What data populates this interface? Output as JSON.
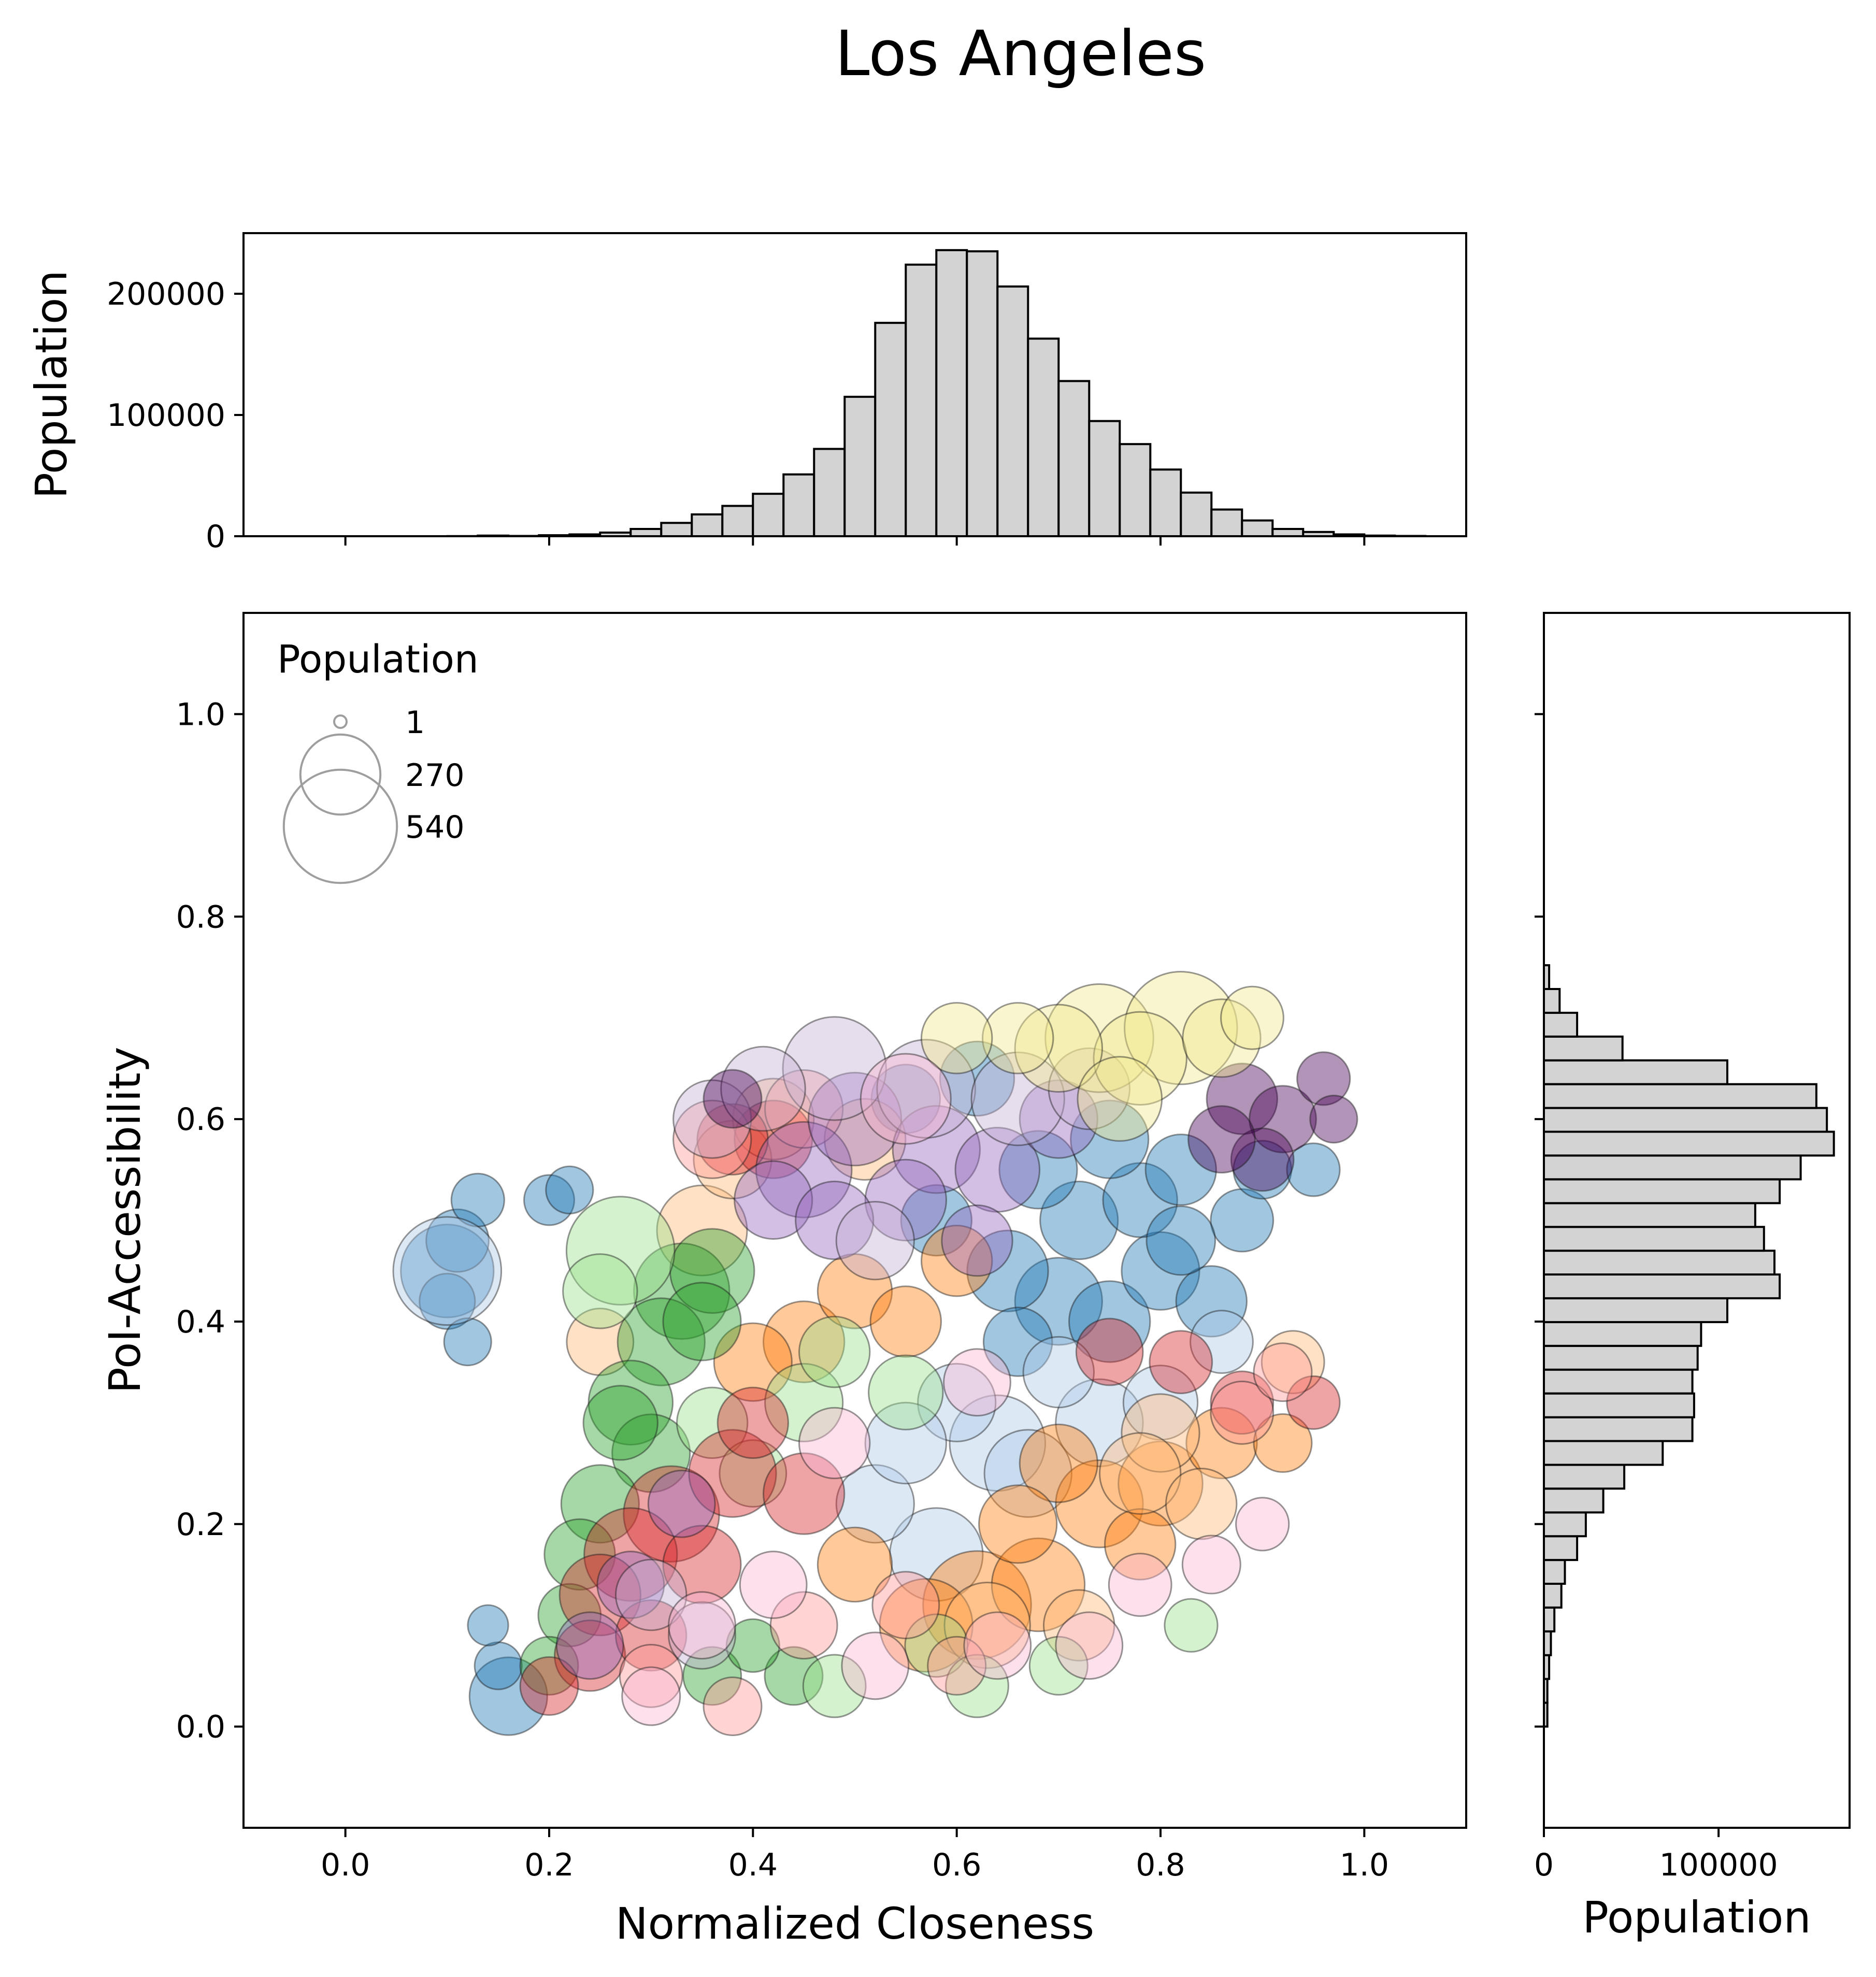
{
  "chart_data": {
    "title": "Los Angeles",
    "colors": {
      "hist_fill": "#d3d3d3",
      "hist_edge": "#000000",
      "legend_marker": "#9e9e9e",
      "clusters": [
        "#1f77b4",
        "#aec7e8",
        "#ff7f0e",
        "#ffbb78",
        "#2ca02c",
        "#98df8a",
        "#d62728",
        "#ff9896",
        "#9467bd",
        "#c5b0d5",
        "#440154",
        "#f0e68c",
        "#f7b6d2"
      ]
    },
    "scatter": {
      "type": "scatter",
      "xlabel": "Normalized Closeness",
      "ylabel": "PoI-Accessibility",
      "xlim": [
        -0.1,
        1.1
      ],
      "ylim": [
        -0.1,
        1.1
      ],
      "xticks": [
        "0.0",
        "0.2",
        "0.4",
        "0.6",
        "0.8",
        "1.0"
      ],
      "yticks": [
        "0.0",
        "0.2",
        "0.4",
        "0.6",
        "0.8",
        "1.0"
      ],
      "legend": {
        "title": "Population",
        "placement": "upper-left",
        "entries": [
          {
            "label": "1",
            "size": 1
          },
          {
            "label": "270",
            "size": 270
          },
          {
            "label": "540",
            "size": 540
          }
        ]
      },
      "series": [
        {
          "color": "#1f77b4",
          "points": [
            [
              0.1,
              0.45,
              300
            ],
            [
              0.11,
              0.48,
              120
            ],
            [
              0.1,
              0.42,
              90
            ],
            [
              0.13,
              0.52,
              80
            ],
            [
              0.12,
              0.38,
              60
            ],
            [
              0.2,
              0.52,
              70
            ],
            [
              0.22,
              0.53,
              60
            ],
            [
              0.16,
              0.03,
              200
            ],
            [
              0.15,
              0.06,
              60
            ],
            [
              0.14,
              0.1,
              40
            ],
            [
              0.7,
              0.42,
              260
            ],
            [
              0.75,
              0.4,
              220
            ],
            [
              0.8,
              0.45,
              200
            ],
            [
              0.85,
              0.42,
              160
            ],
            [
              0.65,
              0.45,
              220
            ],
            [
              0.72,
              0.5,
              200
            ],
            [
              0.78,
              0.52,
              180
            ],
            [
              0.82,
              0.55,
              160
            ],
            [
              0.88,
              0.5,
              120
            ],
            [
              0.68,
              0.55,
              200
            ],
            [
              0.62,
              0.64,
              180
            ],
            [
              0.75,
              0.58,
              200
            ],
            [
              0.9,
              0.55,
              100
            ],
            [
              0.66,
              0.38,
              150
            ],
            [
              0.58,
              0.5,
              160
            ],
            [
              0.82,
              0.48,
              150
            ],
            [
              0.95,
              0.55,
              80
            ],
            [
              0.55,
              0.62,
              150
            ]
          ]
        },
        {
          "color": "#aec7e8",
          "points": [
            [
              0.1,
              0.45,
              420
            ],
            [
              0.64,
              0.28,
              320
            ],
            [
              0.58,
              0.17,
              300
            ],
            [
              0.67,
              0.25,
              260
            ],
            [
              0.74,
              0.3,
              260
            ],
            [
              0.52,
              0.22,
              200
            ],
            [
              0.6,
              0.32,
              200
            ],
            [
              0.8,
              0.32,
              180
            ],
            [
              0.55,
              0.28,
              220
            ],
            [
              0.7,
              0.35,
              160
            ],
            [
              0.86,
              0.38,
              120
            ]
          ]
        },
        {
          "color": "#ff7f0e",
          "points": [
            [
              0.62,
              0.12,
              420
            ],
            [
              0.57,
              0.1,
              300
            ],
            [
              0.68,
              0.14,
              300
            ],
            [
              0.74,
              0.22,
              260
            ],
            [
              0.8,
              0.24,
              240
            ],
            [
              0.86,
              0.28,
              160
            ],
            [
              0.7,
              0.26,
              200
            ],
            [
              0.45,
              0.38,
              220
            ],
            [
              0.4,
              0.36,
              200
            ],
            [
              0.5,
              0.43,
              180
            ],
            [
              0.6,
              0.46,
              160
            ],
            [
              0.66,
              0.2,
              200
            ],
            [
              0.92,
              0.28,
              100
            ],
            [
              0.5,
              0.16,
              180
            ],
            [
              0.55,
              0.4,
              160
            ],
            [
              0.78,
              0.18,
              160
            ]
          ]
        },
        {
          "color": "#ffbb78",
          "points": [
            [
              0.35,
              0.49,
              280
            ],
            [
              0.38,
              0.56,
              200
            ],
            [
              0.42,
              0.6,
              220
            ],
            [
              0.51,
              0.58,
              220
            ],
            [
              0.63,
              0.1,
              250
            ],
            [
              0.8,
              0.29,
              200
            ],
            [
              0.78,
              0.25,
              220
            ],
            [
              0.84,
              0.22,
              160
            ],
            [
              0.25,
              0.38,
              140
            ],
            [
              0.93,
              0.36,
              120
            ],
            [
              0.72,
              0.1,
              160
            ]
          ]
        },
        {
          "color": "#2ca02c",
          "points": [
            [
              0.33,
              0.43,
              320
            ],
            [
              0.31,
              0.38,
              260
            ],
            [
              0.28,
              0.32,
              240
            ],
            [
              0.36,
              0.45,
              240
            ],
            [
              0.3,
              0.27,
              200
            ],
            [
              0.25,
              0.22,
              200
            ],
            [
              0.23,
              0.17,
              160
            ],
            [
              0.27,
              0.3,
              180
            ],
            [
              0.35,
              0.4,
              200
            ],
            [
              0.22,
              0.11,
              120
            ],
            [
              0.2,
              0.06,
              100
            ],
            [
              0.36,
              0.05,
              100
            ],
            [
              0.44,
              0.05,
              100
            ],
            [
              0.4,
              0.08,
              80
            ]
          ]
        },
        {
          "color": "#98df8a",
          "points": [
            [
              0.27,
              0.47,
              420
            ],
            [
              0.25,
              0.43,
              180
            ],
            [
              0.36,
              0.3,
              160
            ],
            [
              0.45,
              0.32,
              200
            ],
            [
              0.55,
              0.33,
              180
            ],
            [
              0.48,
              0.37,
              160
            ],
            [
              0.4,
              0.25,
              140
            ],
            [
              0.58,
              0.08,
              120
            ],
            [
              0.62,
              0.04,
              120
            ],
            [
              0.7,
              0.06,
              100
            ],
            [
              0.83,
              0.1,
              80
            ],
            [
              0.48,
              0.04,
              120
            ]
          ]
        },
        {
          "color": "#d62728",
          "points": [
            [
              0.32,
              0.21,
              320
            ],
            [
              0.28,
              0.17,
              300
            ],
            [
              0.25,
              0.13,
              220
            ],
            [
              0.38,
              0.25,
              260
            ],
            [
              0.45,
              0.23,
              220
            ],
            [
              0.35,
              0.16,
              200
            ],
            [
              0.4,
              0.3,
              160
            ],
            [
              0.24,
              0.07,
              160
            ],
            [
              0.3,
              0.09,
              160
            ],
            [
              0.42,
              0.58,
              200
            ],
            [
              0.38,
              0.58,
              160
            ],
            [
              0.88,
              0.32,
              120
            ],
            [
              0.95,
              0.32,
              80
            ],
            [
              0.75,
              0.37,
              140
            ],
            [
              0.82,
              0.36,
              120
            ],
            [
              0.2,
              0.04,
              100
            ]
          ]
        },
        {
          "color": "#ff9896",
          "points": [
            [
              0.36,
              0.58,
              200
            ],
            [
              0.45,
              0.61,
              200
            ],
            [
              0.3,
              0.05,
              120
            ],
            [
              0.45,
              0.1,
              140
            ],
            [
              0.55,
              0.12,
              140
            ],
            [
              0.88,
              0.31,
              120
            ],
            [
              0.92,
              0.35,
              100
            ],
            [
              0.38,
              0.02,
              100
            ],
            [
              0.6,
              0.06,
              100
            ]
          ]
        },
        {
          "color": "#9467bd",
          "points": [
            [
              0.45,
              0.55,
              320
            ],
            [
              0.5,
              0.6,
              300
            ],
            [
              0.58,
              0.57,
              260
            ],
            [
              0.64,
              0.55,
              240
            ],
            [
              0.55,
              0.52,
              220
            ],
            [
              0.42,
              0.52,
              200
            ],
            [
              0.7,
              0.6,
              200
            ],
            [
              0.48,
              0.5,
              200
            ],
            [
              0.24,
              0.08,
              140
            ],
            [
              0.28,
              0.14,
              140
            ],
            [
              0.62,
              0.48,
              160
            ],
            [
              0.33,
              0.22,
              140
            ]
          ]
        },
        {
          "color": "#c5b0d5",
          "points": [
            [
              0.48,
              0.65,
              380
            ],
            [
              0.57,
              0.63,
              340
            ],
            [
              0.66,
              0.62,
              300
            ],
            [
              0.36,
              0.6,
              200
            ],
            [
              0.41,
              0.63,
              240
            ],
            [
              0.73,
              0.63,
              220
            ],
            [
              0.52,
              0.48,
              200
            ],
            [
              0.3,
              0.13,
              160
            ],
            [
              0.35,
              0.09,
              140
            ]
          ]
        },
        {
          "color": "#440154",
          "points": [
            [
              0.88,
              0.62,
              160
            ],
            [
              0.92,
              0.6,
              140
            ],
            [
              0.96,
              0.64,
              80
            ],
            [
              0.9,
              0.56,
              120
            ],
            [
              0.86,
              0.58,
              140
            ],
            [
              0.97,
              0.6,
              60
            ],
            [
              0.38,
              0.62,
              100
            ]
          ]
        },
        {
          "color": "#f0e68c",
          "points": [
            [
              0.74,
              0.68,
              420
            ],
            [
              0.82,
              0.69,
              460
            ],
            [
              0.78,
              0.66,
              300
            ],
            [
              0.86,
              0.68,
              200
            ],
            [
              0.7,
              0.67,
              260
            ],
            [
              0.66,
              0.68,
              160
            ],
            [
              0.76,
              0.62,
              240
            ],
            [
              0.89,
              0.7,
              120
            ],
            [
              0.6,
              0.68,
              160
            ]
          ]
        },
        {
          "color": "#f7b6d2",
          "points": [
            [
              0.55,
              0.62,
              280
            ],
            [
              0.35,
              0.1,
              140
            ],
            [
              0.42,
              0.14,
              140
            ],
            [
              0.52,
              0.06,
              140
            ],
            [
              0.64,
              0.08,
              140
            ],
            [
              0.73,
              0.08,
              140
            ],
            [
              0.48,
              0.28,
              160
            ],
            [
              0.62,
              0.34,
              140
            ],
            [
              0.78,
              0.14,
              120
            ],
            [
              0.85,
              0.16,
              100
            ],
            [
              0.3,
              0.03,
              100
            ],
            [
              0.9,
              0.2,
              80
            ]
          ]
        }
      ]
    },
    "hist_top": {
      "type": "bar",
      "ylabel": "Population",
      "ylim": [
        0,
        250000
      ],
      "yticks": [
        "0",
        "100000",
        "200000"
      ],
      "bin_start": 0.1,
      "bin_width": 0.03,
      "values": [
        100,
        500,
        200,
        800,
        1500,
        3000,
        6000,
        11000,
        18000,
        25000,
        35000,
        51000,
        72000,
        115000,
        176000,
        224000,
        236000,
        235000,
        206000,
        163000,
        128000,
        95000,
        76000,
        55000,
        36000,
        22000,
        13000,
        6000,
        3500,
        1500,
        500,
        200
      ]
    },
    "hist_right": {
      "type": "bar",
      "xlabel": "Population",
      "xlim": [
        0,
        175000
      ],
      "xticks": [
        "0",
        "100000"
      ],
      "bin_start": 0.0,
      "bin_width": 0.0235,
      "values": [
        2000,
        2000,
        3000,
        4000,
        6000,
        10000,
        12000,
        19000,
        24000,
        34000,
        46000,
        68000,
        85000,
        86000,
        85000,
        88000,
        90000,
        105000,
        135000,
        132000,
        126000,
        121000,
        135000,
        147000,
        166000,
        162000,
        156000,
        105000,
        45000,
        19000,
        9000,
        3000
      ]
    }
  }
}
